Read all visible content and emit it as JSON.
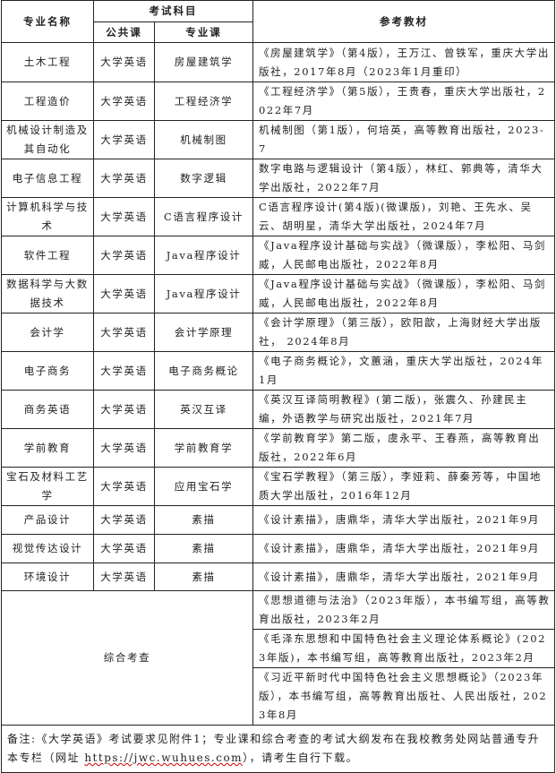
{
  "header": {
    "major": "专业名称",
    "subjects": "考试科目",
    "public_course": "公共课",
    "major_course": "专业课",
    "textbook": "参考教材"
  },
  "rows": [
    {
      "major": "土木工程",
      "public": "大学英语",
      "course": "房屋建筑学",
      "book": "《房屋建筑学》（第4版），王万江、曾铁军，重庆大学出版社，2017年8月（2023年1月重印）"
    },
    {
      "major": "工程造价",
      "public": "大学英语",
      "course": "工程经济学",
      "book": "《工程经济学》（第5版），王贵春，重庆大学出版社，2022年7月"
    },
    {
      "major": "机械设计制造及其自动化",
      "public": "大学英语",
      "course": "机械制图",
      "book": "机械制图（第1版），何培英，高等教育出版社，2023-7"
    },
    {
      "major": "电子信息工程",
      "public": "大学英语",
      "course": "数字逻辑",
      "book": "数字电路与逻辑设计（第4版），林红、郭典等，清华大学出版社，2022年7月"
    },
    {
      "major": "计算机科学与技术",
      "public": "大学英语",
      "course": "C语言程序设计",
      "book": "C语言程序设计(第4版)(微课版)，刘艳、王先水、吴云、胡明星，清华大学出版社，2024年7月"
    },
    {
      "major": "软件工程",
      "public": "大学英语",
      "course": "Java程序设计",
      "book": "《Java程序设计基础与实战》（微课版），李松阳、马剑威，人民邮电出版社，2022年8月"
    },
    {
      "major": "数据科学与大数据技术",
      "public": "大学英语",
      "course": "Java程序设计",
      "book": "《Java程序设计基础与实战》（微课版），李松阳、马剑威，人民邮电出版社，2022年8月"
    },
    {
      "major": "会计学",
      "public": "大学英语",
      "course": "会计学原理",
      "book": "《会计学原理》（第三版），欧阳歆，上海财经大学出版社， 2024年8月"
    },
    {
      "major": "电子商务",
      "public": "大学英语",
      "course": "电子商务概论",
      "book": "《电子商务概论》，文蕙涵，重庆大学出版社，2024年1月"
    },
    {
      "major": "商务英语",
      "public": "大学英语",
      "course": "英汉互译",
      "book": "《英汉互译简明教程》(第二版)，张震久、孙建民主编，外语教学与研究出版社，2021年7月"
    },
    {
      "major": "学前教育",
      "public": "大学英语",
      "course": "学前教育学",
      "book": "《学前教育学》第二版，虞永平、王春燕，高等教育出版社，2022年6月"
    },
    {
      "major": "宝石及材料工艺学",
      "public": "大学英语",
      "course": "应用宝石学",
      "book": "《宝石学教程》（第三版），李娅莉、薛秦芳等，中国地质大学出版社，2016年12月"
    },
    {
      "major": "产品设计",
      "public": "大学英语",
      "course": "素描",
      "book": "《设计素描》，唐鼎华，清华大学出版社，2021年9月"
    },
    {
      "major": "视觉传达设计",
      "public": "大学英语",
      "course": "素描",
      "book": "《设计素描》，唐鼎华，清华大学出版社，2021年9月"
    },
    {
      "major": "环境设计",
      "public": "大学英语",
      "course": "素描",
      "book": "《设计素描》，唐鼎华，清华大学出版社，2021年9月"
    }
  ],
  "comprehensive": {
    "label": "综合考查",
    "books": [
      "《思想道德与法治》（2023年版），本书编写组，高等教育出版社，2023年2月",
      "《毛泽东思想和中国特色社会主义理论体系概论》(2023年版)，本书编写组，高等教育出版社，2023年2月",
      "《习近平新时代中国特色社会主义思想概论》（2023年版），本书编写组，高等教育出版社、人民出版社，2023年8月"
    ]
  },
  "note": {
    "before": "备注:《大学英语》考试要求见附件1；专业课和综合考查的考试大纲发布在我校教务处网站普通专升本专栏（网址 ",
    "url": "https://jwc.wuhues.com",
    "after": "），请考生自行下载。"
  }
}
